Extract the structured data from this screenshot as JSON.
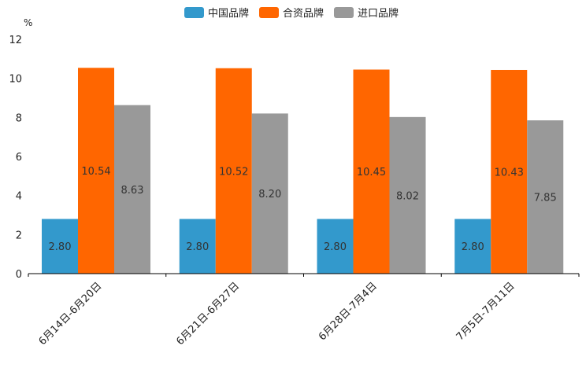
{
  "chart_data": {
    "type": "bar",
    "title": "",
    "ylabel": "%",
    "xlabel": "",
    "ylim": [
      0,
      12
    ],
    "yticks": [
      0,
      2,
      4,
      6,
      8,
      10,
      12
    ],
    "categories": [
      "6月14日-6月20日",
      "6月21日-6月27日",
      "6月28日-7月4日",
      "7月5日-7月11日"
    ],
    "series": [
      {
        "name": "中国品牌",
        "color": "#3399cc",
        "values": [
          2.8,
          2.8,
          2.8,
          2.8
        ],
        "labels": [
          "2.80",
          "2.80",
          "2.80",
          "2.80"
        ]
      },
      {
        "name": "合资品牌",
        "color": "#ff6600",
        "values": [
          10.54,
          10.52,
          10.45,
          10.43
        ],
        "labels": [
          "10.54",
          "10.52",
          "10.45",
          "10.43"
        ]
      },
      {
        "name": "进口品牌",
        "color": "#999999",
        "values": [
          8.63,
          8.2,
          8.02,
          7.85
        ],
        "labels": [
          "8.63",
          "8.20",
          "8.02",
          "7.85"
        ]
      }
    ],
    "legend_position": "top-center",
    "grid": false
  }
}
